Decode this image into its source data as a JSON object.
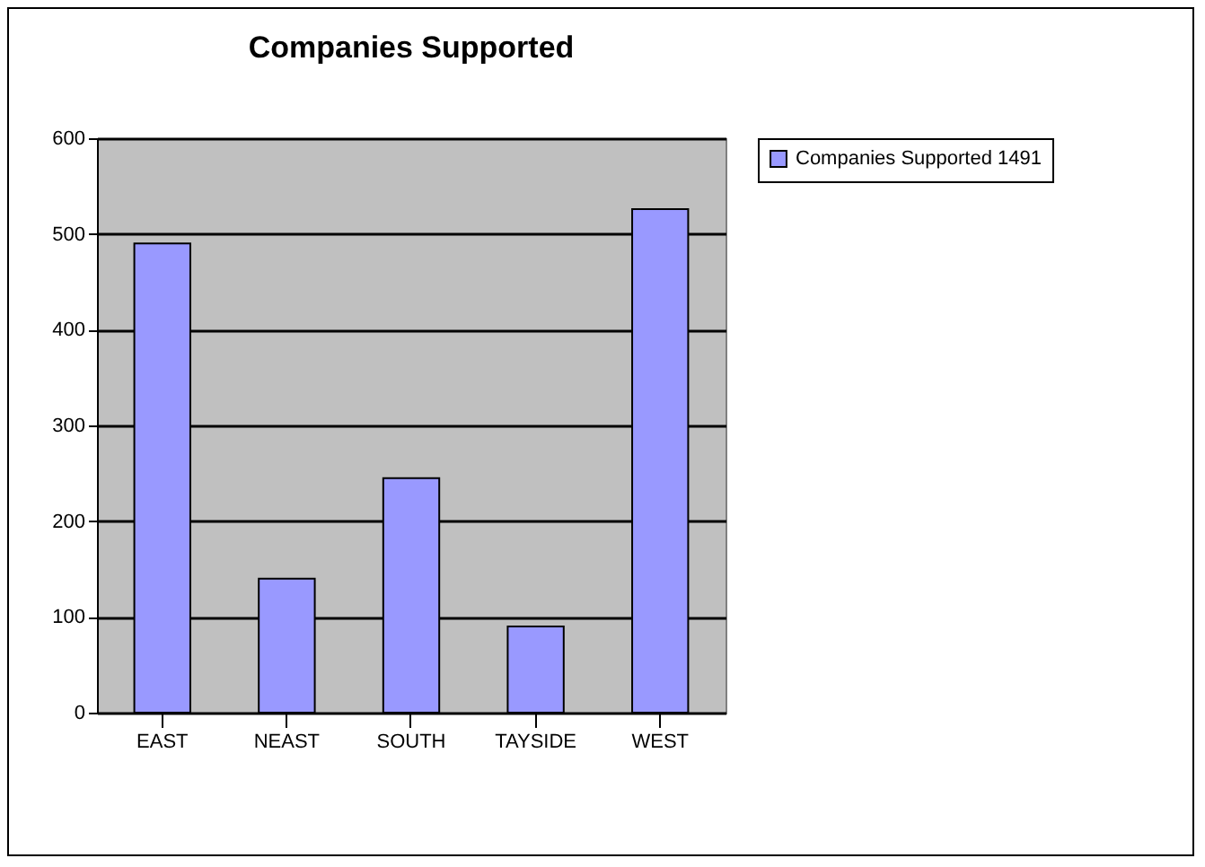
{
  "chart_data": {
    "type": "bar",
    "title": "Companies Supported",
    "categories": [
      "EAST",
      "NEAST",
      "SOUTH",
      "TAYSIDE",
      "WEST"
    ],
    "series": [
      {
        "name": "Companies Supported 1491",
        "color": "#9999ff",
        "values": [
          490,
          140,
          245,
          90,
          526
        ]
      }
    ],
    "ylim": [
      0,
      600
    ],
    "yticks": [
      0,
      100,
      200,
      300,
      400,
      500,
      600
    ],
    "grid": "y",
    "legend": "right"
  }
}
